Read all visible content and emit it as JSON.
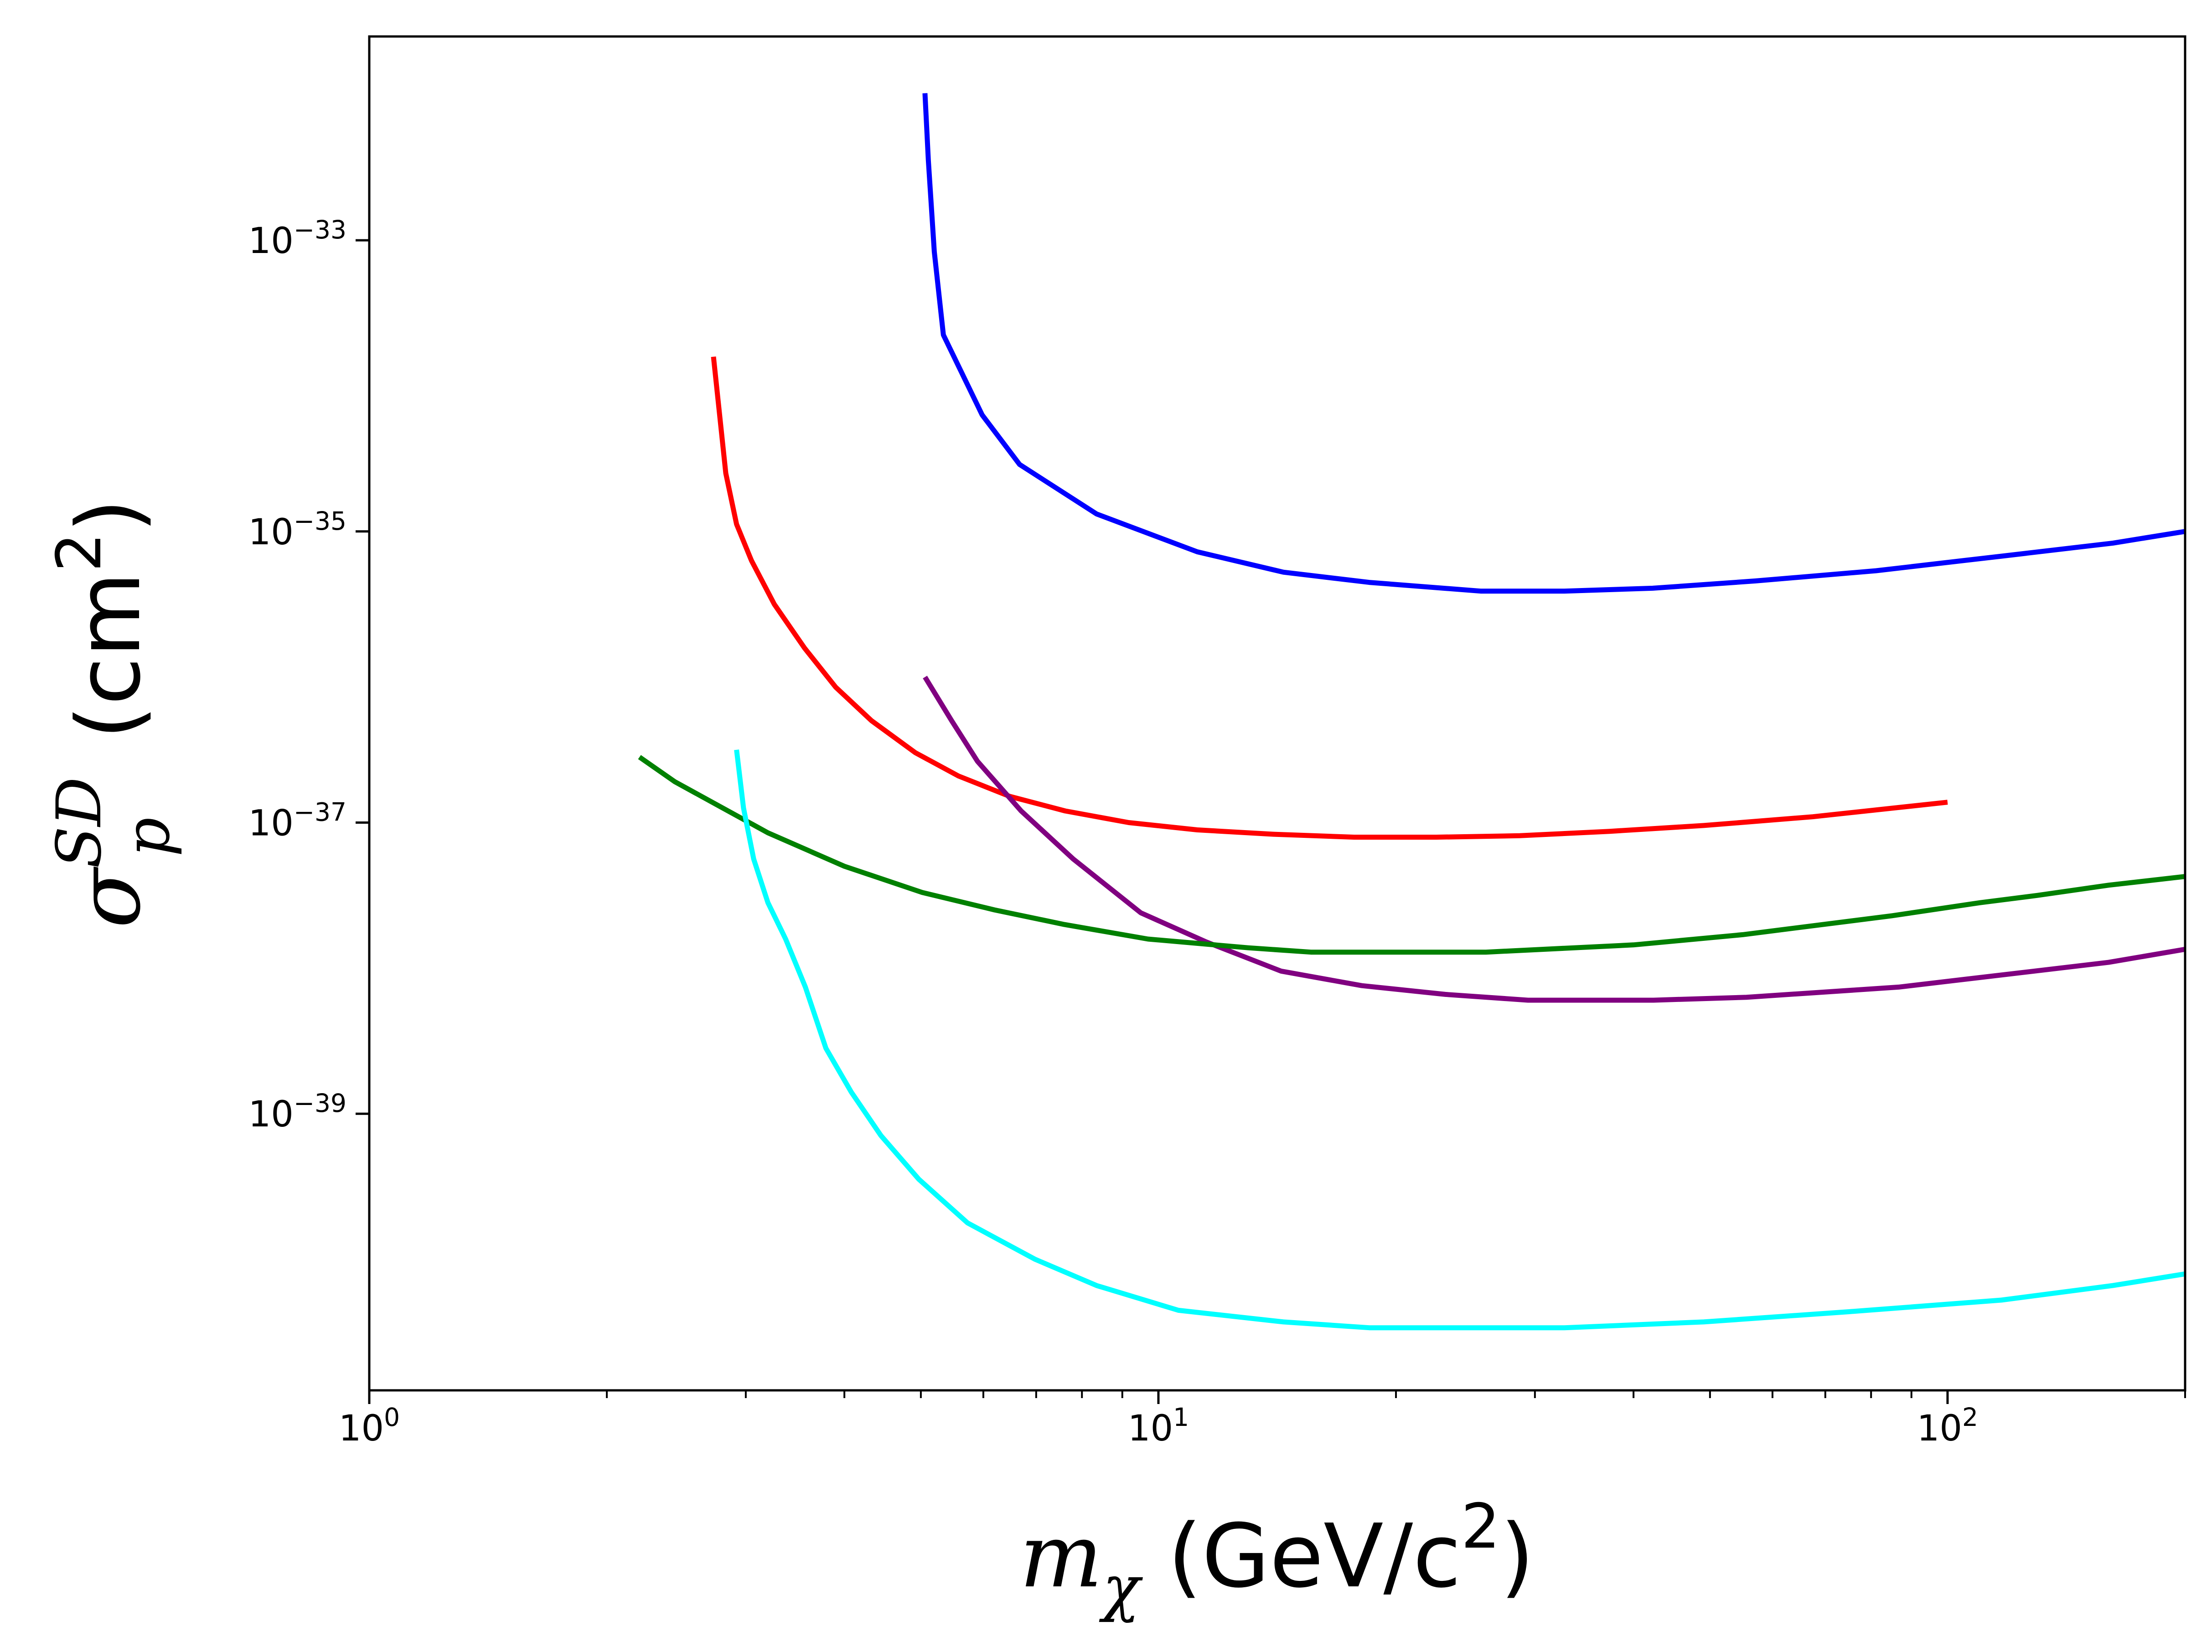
{
  "chart_data": {
    "type": "line",
    "title": "",
    "xlabel": {
      "base": "m",
      "sub": "χ",
      "unit_pre": " (GeV/c",
      "unit_sup": "2",
      "unit_post": ")"
    },
    "ylabel": {
      "base": "σ",
      "sup": "SD",
      "sub": "p",
      "unit_pre": " (cm",
      "unit_sup": "2",
      "unit_post": ")"
    },
    "x_scale": "log",
    "y_scale": "log",
    "xlim": [
      1,
      200
    ],
    "ylim_log10": [
      -40.9,
      -31.6
    ],
    "x_ticks": [
      {
        "value": 1,
        "base": "10",
        "exp": "0"
      },
      {
        "value": 10,
        "base": "10",
        "exp": "1"
      },
      {
        "value": 100,
        "base": "10",
        "exp": "2"
      }
    ],
    "y_ticks": [
      {
        "value_log10": -33,
        "base": "10",
        "exp": "−33"
      },
      {
        "value_log10": -35,
        "base": "10",
        "exp": "−35"
      },
      {
        "value_log10": -37,
        "base": "10",
        "exp": "−37"
      },
      {
        "value_log10": -39,
        "base": "10",
        "exp": "−39"
      }
    ],
    "grid": false,
    "legend": "none",
    "series": [
      {
        "name": "blue",
        "color": "#0000ff",
        "x": [
          5.06,
          5.11,
          5.2,
          5.34,
          5.98,
          6.67,
          8.35,
          11.2,
          14.4,
          18.5,
          25.6,
          32.7,
          42.3,
          57.1,
          81.2,
          117,
          162,
          200
        ],
        "y_log10": [
          -31.99,
          -32.45,
          -33.08,
          -33.65,
          -34.2,
          -34.54,
          -34.88,
          -35.14,
          -35.28,
          -35.35,
          -35.41,
          -35.41,
          -35.39,
          -35.34,
          -35.27,
          -35.17,
          -35.08,
          -35.0
        ]
      },
      {
        "name": "red",
        "color": "#ff0000",
        "x": [
          2.73,
          2.83,
          2.92,
          3.05,
          3.26,
          3.56,
          3.9,
          4.33,
          4.92,
          5.58,
          6.48,
          7.62,
          9.17,
          11.2,
          14.0,
          17.7,
          22.5,
          28.7,
          37.3,
          49.1,
          67.5,
          100
        ],
        "y_log10": [
          -33.8,
          -34.6,
          -34.95,
          -35.2,
          -35.5,
          -35.8,
          -36.07,
          -36.3,
          -36.52,
          -36.68,
          -36.82,
          -36.92,
          -37.0,
          -37.05,
          -37.08,
          -37.1,
          -37.1,
          -37.09,
          -37.06,
          -37.02,
          -36.96,
          -36.86
        ]
      },
      {
        "name": "purple",
        "color": "#800080",
        "x": [
          5.06,
          5.47,
          5.9,
          6.7,
          7.8,
          9.5,
          11.5,
          14.3,
          18.1,
          23.1,
          29.4,
          42.4,
          55.6,
          86.7,
          160,
          200
        ],
        "y_log10": [
          -36.0,
          -36.3,
          -36.58,
          -36.92,
          -37.25,
          -37.62,
          -37.82,
          -38.02,
          -38.12,
          -38.18,
          -38.22,
          -38.22,
          -38.2,
          -38.13,
          -37.96,
          -37.87
        ]
      },
      {
        "name": "green",
        "color": "#008000",
        "x": [
          2.2,
          2.44,
          3.2,
          4.0,
          5.02,
          6.2,
          7.6,
          9.7,
          13.0,
          15.6,
          26.0,
          40.0,
          55.0,
          85.0,
          110.0,
          130.0,
          160.0,
          200.0
        ],
        "y_log10": [
          -36.55,
          -36.72,
          -37.07,
          -37.3,
          -37.48,
          -37.6,
          -37.7,
          -37.8,
          -37.86,
          -37.89,
          -37.89,
          -37.84,
          -37.77,
          -37.64,
          -37.55,
          -37.5,
          -37.43,
          -37.37
        ]
      },
      {
        "name": "cyan",
        "color": "#00ffff",
        "x": [
          2.92,
          2.98,
          3.07,
          3.2,
          3.37,
          3.57,
          3.79,
          4.08,
          4.45,
          4.97,
          5.73,
          6.98,
          8.35,
          10.6,
          14.4,
          18.5,
          32.7,
          49.1,
          75.0,
          117.0,
          162.0,
          200.0
        ],
        "y_log10": [
          -36.5,
          -36.9,
          -37.25,
          -37.55,
          -37.8,
          -38.13,
          -38.55,
          -38.85,
          -39.15,
          -39.45,
          -39.75,
          -40.0,
          -40.18,
          -40.35,
          -40.43,
          -40.47,
          -40.47,
          -40.43,
          -40.36,
          -40.28,
          -40.18,
          -40.1
        ]
      }
    ]
  }
}
